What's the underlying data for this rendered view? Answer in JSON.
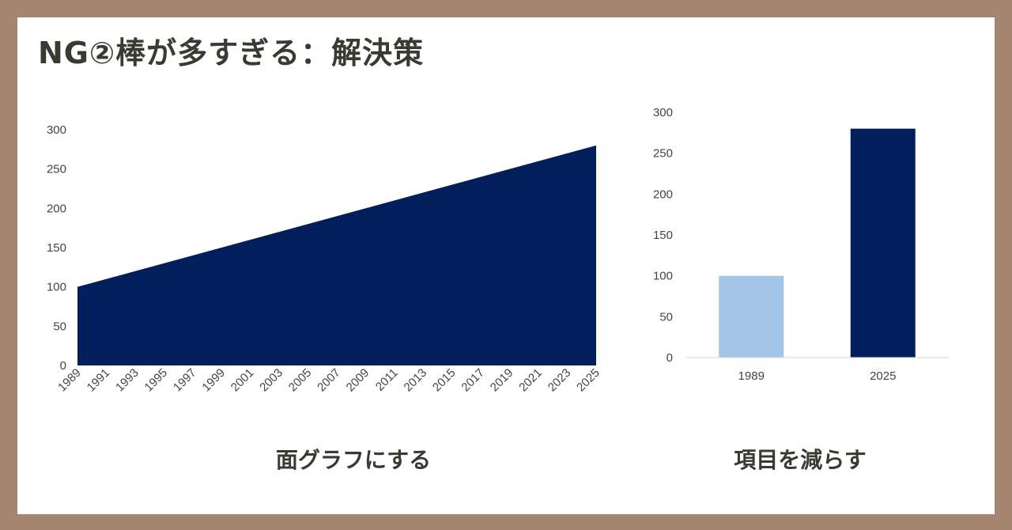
{
  "title": "NG②棒が多すぎる：解決策",
  "captions": {
    "area": "面グラフにする",
    "bar": "項目を減らす"
  },
  "colors": {
    "background": "#a5856f",
    "navy": "#001f5b",
    "light_blue": "#a3c5e7",
    "text": "#3a3a33"
  },
  "chart_data": [
    {
      "type": "area",
      "x": [
        1989,
        2025
      ],
      "y": [
        100,
        280
      ],
      "xticks": [
        "1989",
        "1991",
        "1993",
        "1995",
        "1997",
        "1999",
        "2001",
        "2003",
        "2005",
        "2007",
        "2009",
        "2011",
        "2013",
        "2015",
        "2017",
        "2019",
        "2021",
        "2023",
        "2025"
      ],
      "yticks": [
        0,
        50,
        100,
        150,
        200,
        250,
        300
      ],
      "ylim": [
        0,
        300
      ],
      "xlim": [
        1989,
        2025
      ],
      "color": "#001f5b",
      "grid": false,
      "title": "",
      "xlabel": "",
      "ylabel": ""
    },
    {
      "type": "bar",
      "categories": [
        "1989",
        "2025"
      ],
      "values": [
        100,
        280
      ],
      "colors": [
        "#a3c5e7",
        "#001f5b"
      ],
      "yticks": [
        0,
        50,
        100,
        150,
        200,
        250,
        300
      ],
      "ylim": [
        0,
        300
      ],
      "grid": false,
      "title": "",
      "xlabel": "",
      "ylabel": ""
    }
  ]
}
